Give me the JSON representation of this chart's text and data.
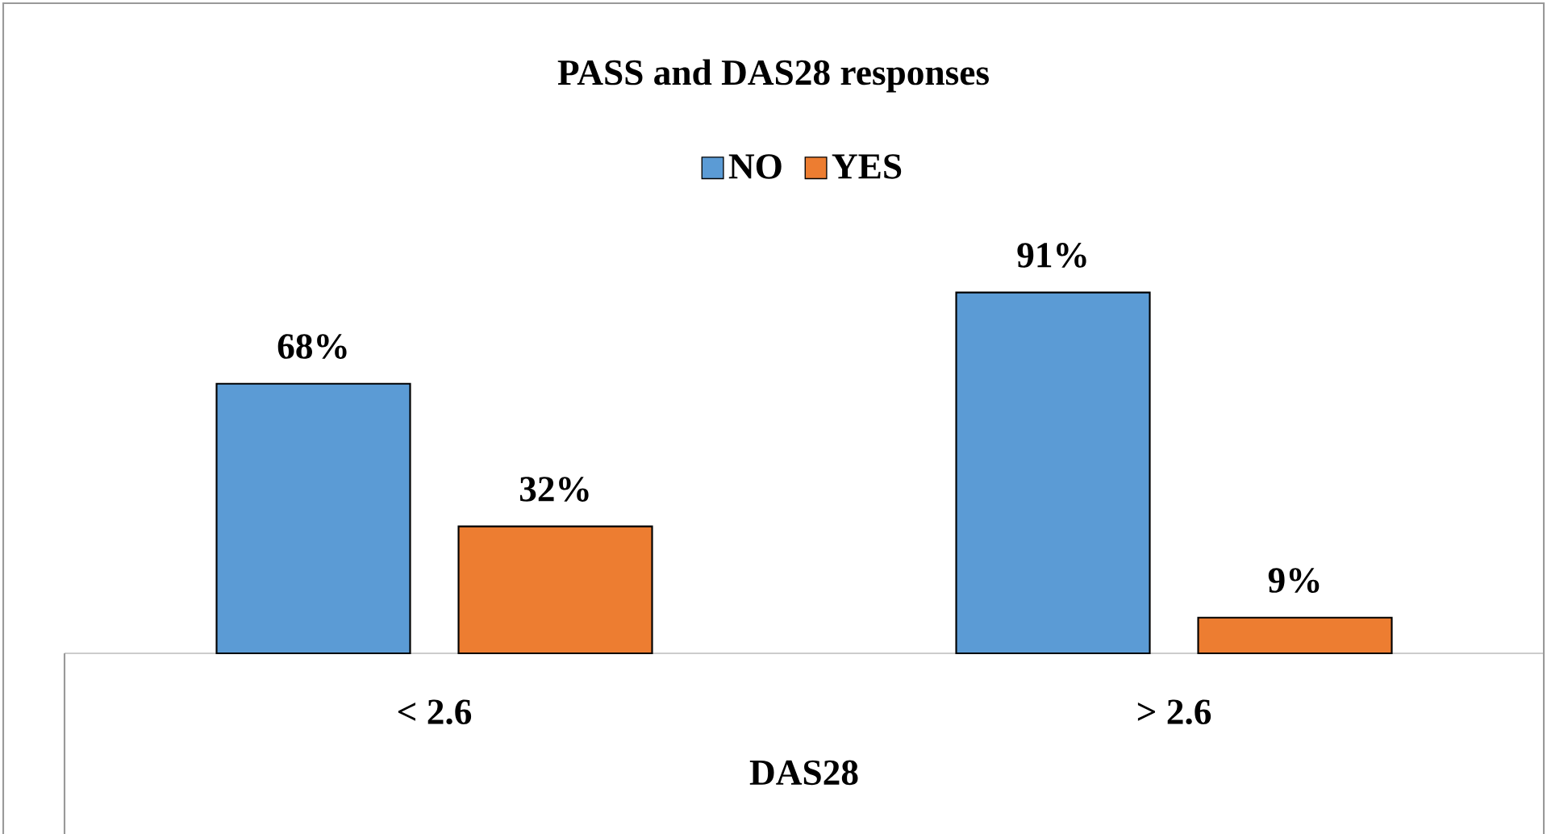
{
  "chart_data": {
    "type": "bar",
    "title": "PASS and DAS28 responses",
    "xlabel": "DAS28",
    "categories": [
      "< 2.6",
      "> 2.6"
    ],
    "series": [
      {
        "name": "NO",
        "color": "#5b9bd5",
        "values": [
          68,
          91
        ],
        "value_labels": [
          "68%",
          "91%"
        ]
      },
      {
        "name": "YES",
        "color": "#ed7d31",
        "values": [
          32,
          9
        ],
        "value_labels": [
          "32%",
          "9%"
        ]
      }
    ],
    "legend": "top"
  }
}
